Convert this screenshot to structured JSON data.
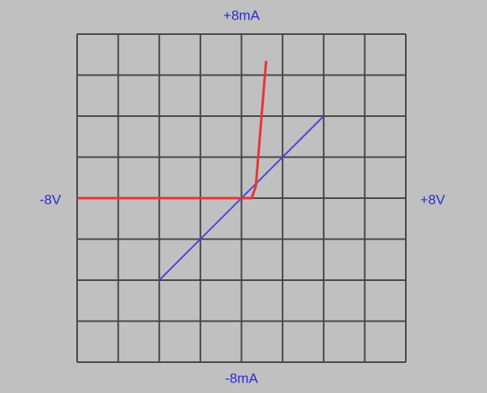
{
  "chart_data": {
    "type": "line",
    "xlim": [
      -8,
      8
    ],
    "ylim": [
      -8,
      8
    ],
    "xticks": [
      {
        "value": -8,
        "label": "-8V"
      },
      {
        "value": 8,
        "label": "+8V"
      }
    ],
    "yticks": [
      {
        "value": -8,
        "label": "-8mA"
      },
      {
        "value": 8,
        "label": "+8mA"
      }
    ],
    "minor_xticks": [
      -6,
      -4,
      -2,
      0,
      2,
      4,
      6
    ],
    "minor_yticks": [
      -6,
      -4,
      -2,
      0,
      2,
      4,
      6
    ],
    "grid": true,
    "grid_color": "#474747",
    "series": [
      {
        "color": "#4848dc",
        "x": [
          -4,
          4
        ],
        "values": [
          -4,
          4
        ]
      },
      {
        "color": "#e83434",
        "x": [
          -8,
          0.5,
          0.7,
          1.2
        ],
        "values": [
          0,
          0,
          0.6,
          6.7
        ]
      }
    ]
  }
}
